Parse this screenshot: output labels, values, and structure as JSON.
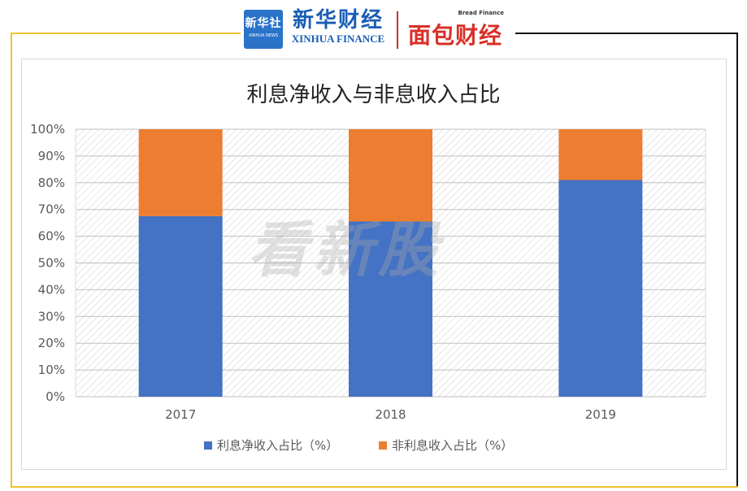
{
  "header": {
    "xinhua_logo_cn": "新华社",
    "xinhua_logo_en": "XINHUA NEWS",
    "finance_logo_cn": "新华财经",
    "finance_logo_en": "XINHUA FINANCE",
    "bread_logo_en": "Bread Finance",
    "bread_logo_cn": "面包财经"
  },
  "watermark": "看新股",
  "colors": {
    "interest": "#4472c4",
    "non_interest": "#ed7d31",
    "frame_gold": "#f2c12e"
  },
  "chart_data": {
    "type": "bar",
    "stacked": true,
    "title": "利息净收入与非息收入占比",
    "categories": [
      "2017",
      "2018",
      "2019"
    ],
    "series": [
      {
        "name": "利息净收入占比（%）",
        "values": [
          67.5,
          65.5,
          81
        ]
      },
      {
        "name": "非利息收入占比（%）",
        "values": [
          32.5,
          34.5,
          19
        ]
      }
    ],
    "ylim": [
      0,
      100
    ],
    "yticks": [
      "0%",
      "10%",
      "20%",
      "30%",
      "40%",
      "50%",
      "60%",
      "70%",
      "80%",
      "90%",
      "100%"
    ],
    "grid": true,
    "legend_position": "bottom"
  }
}
